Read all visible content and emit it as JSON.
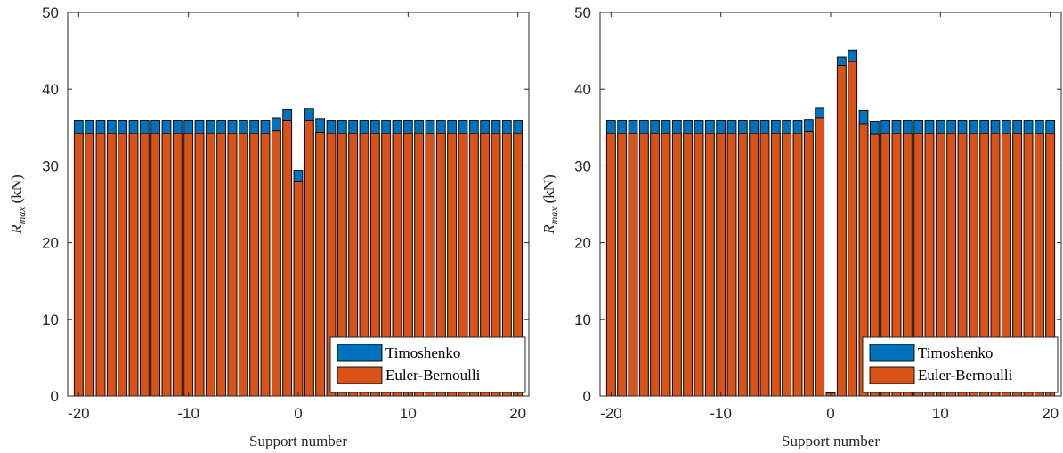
{
  "chart_data": [
    {
      "type": "bar",
      "mode": "overlaid",
      "xlabel": "Support number",
      "ylabel": "R",
      "ylabel_subscript": "max",
      "ylabel_unit": "(kN)",
      "xlim": [
        -21,
        21
      ],
      "ylim": [
        0,
        50
      ],
      "xticks": [
        -20,
        -10,
        0,
        10,
        20
      ],
      "yticks": [
        0,
        10,
        20,
        30,
        40,
        50
      ],
      "legend_position": "bottom-right",
      "x": [
        -20,
        -19,
        -18,
        -17,
        -16,
        -15,
        -14,
        -13,
        -12,
        -11,
        -10,
        -9,
        -8,
        -7,
        -6,
        -5,
        -4,
        -3,
        -2,
        -1,
        0,
        1,
        2,
        3,
        4,
        5,
        6,
        7,
        8,
        9,
        10,
        11,
        12,
        13,
        14,
        15,
        16,
        17,
        18,
        19,
        20
      ],
      "series": [
        {
          "name": "Timoshenko",
          "color": "#0072BD",
          "values": [
            35.9,
            35.9,
            35.9,
            35.9,
            35.9,
            35.9,
            35.9,
            35.9,
            35.9,
            35.9,
            35.9,
            35.9,
            35.9,
            35.9,
            35.9,
            35.9,
            35.9,
            35.9,
            36.2,
            37.3,
            29.4,
            37.5,
            36.1,
            35.9,
            35.9,
            35.9,
            35.9,
            35.9,
            35.9,
            35.9,
            35.9,
            35.9,
            35.9,
            35.9,
            35.9,
            35.9,
            35.9,
            35.9,
            35.9,
            35.9,
            35.9
          ]
        },
        {
          "name": "Euler-Bernoulli",
          "color": "#D95319",
          "values": [
            34.2,
            34.2,
            34.2,
            34.2,
            34.2,
            34.2,
            34.2,
            34.2,
            34.2,
            34.2,
            34.2,
            34.2,
            34.2,
            34.2,
            34.2,
            34.2,
            34.2,
            34.2,
            34.6,
            35.9,
            28.0,
            35.9,
            34.4,
            34.2,
            34.2,
            34.2,
            34.2,
            34.2,
            34.2,
            34.2,
            34.2,
            34.2,
            34.2,
            34.2,
            34.2,
            34.2,
            34.2,
            34.2,
            34.2,
            34.2,
            34.2
          ]
        }
      ]
    },
    {
      "type": "bar",
      "mode": "overlaid",
      "xlabel": "Support number",
      "ylabel": "R",
      "ylabel_subscript": "max",
      "ylabel_unit": "(kN)",
      "xlim": [
        -21,
        21
      ],
      "ylim": [
        0,
        50
      ],
      "xticks": [
        -20,
        -10,
        0,
        10,
        20
      ],
      "yticks": [
        0,
        10,
        20,
        30,
        40,
        50
      ],
      "legend_position": "bottom-right",
      "x": [
        -20,
        -19,
        -18,
        -17,
        -16,
        -15,
        -14,
        -13,
        -12,
        -11,
        -10,
        -9,
        -8,
        -7,
        -6,
        -5,
        -4,
        -3,
        -2,
        -1,
        0,
        1,
        2,
        3,
        4,
        5,
        6,
        7,
        8,
        9,
        10,
        11,
        12,
        13,
        14,
        15,
        16,
        17,
        18,
        19,
        20
      ],
      "series": [
        {
          "name": "Timoshenko",
          "color": "#0072BD",
          "values": [
            35.9,
            35.9,
            35.9,
            35.9,
            35.9,
            35.9,
            35.9,
            35.9,
            35.9,
            35.9,
            35.9,
            35.9,
            35.9,
            35.9,
            35.9,
            35.9,
            35.9,
            35.9,
            36.0,
            37.6,
            0.5,
            44.2,
            45.1,
            37.2,
            35.8,
            35.9,
            35.9,
            35.9,
            35.9,
            35.9,
            35.9,
            35.9,
            35.9,
            35.9,
            35.9,
            35.9,
            35.9,
            35.9,
            35.9,
            35.9,
            35.9
          ]
        },
        {
          "name": "Euler-Bernoulli",
          "color": "#D95319",
          "values": [
            34.2,
            34.2,
            34.2,
            34.2,
            34.2,
            34.2,
            34.2,
            34.2,
            34.2,
            34.2,
            34.2,
            34.2,
            34.2,
            34.2,
            34.2,
            34.2,
            34.2,
            34.2,
            34.5,
            36.2,
            0.4,
            43.1,
            43.6,
            35.5,
            34.1,
            34.2,
            34.2,
            34.2,
            34.2,
            34.2,
            34.2,
            34.2,
            34.2,
            34.2,
            34.2,
            34.2,
            34.2,
            34.2,
            34.2,
            34.2,
            34.2
          ]
        }
      ]
    }
  ]
}
